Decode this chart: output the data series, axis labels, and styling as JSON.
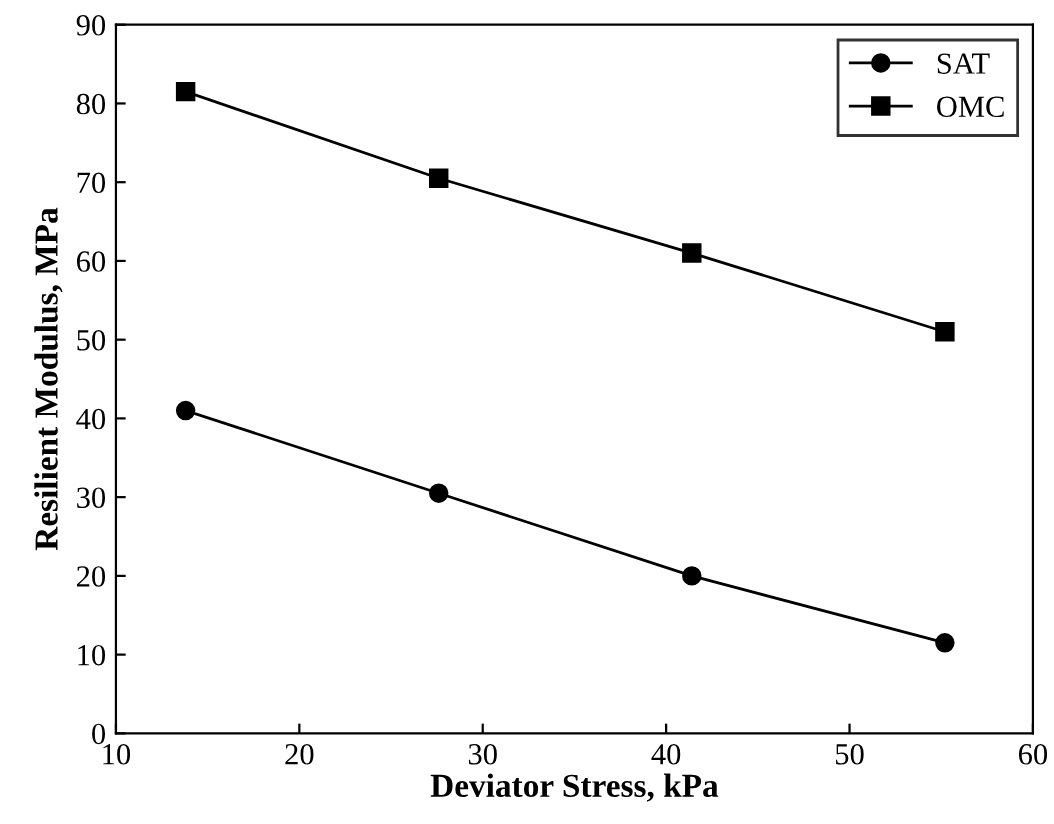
{
  "chart_data": {
    "type": "line",
    "xlabel": "Deviator Stress, kPa",
    "ylabel": "Resilient Modulus, MPa",
    "x": [
      13.8,
      27.6,
      41.4,
      55.2
    ],
    "series": [
      {
        "name": "SAT",
        "color": "#000000",
        "values": [
          41,
          30.5,
          20,
          11.5
        ],
        "marker": "circle"
      },
      {
        "name": "OMC",
        "color": "#000000",
        "values": [
          81.5,
          70.5,
          61,
          51
        ],
        "marker": "square"
      }
    ],
    "xlim": [
      10,
      60
    ],
    "xticks": [
      10,
      20,
      30,
      40,
      50,
      60
    ],
    "ylim": [
      0,
      90
    ],
    "yticks": [
      0,
      10,
      20,
      30,
      40,
      50,
      60,
      70,
      80,
      90
    ],
    "grid": false,
    "legend": "top right",
    "line_style": "solid"
  }
}
